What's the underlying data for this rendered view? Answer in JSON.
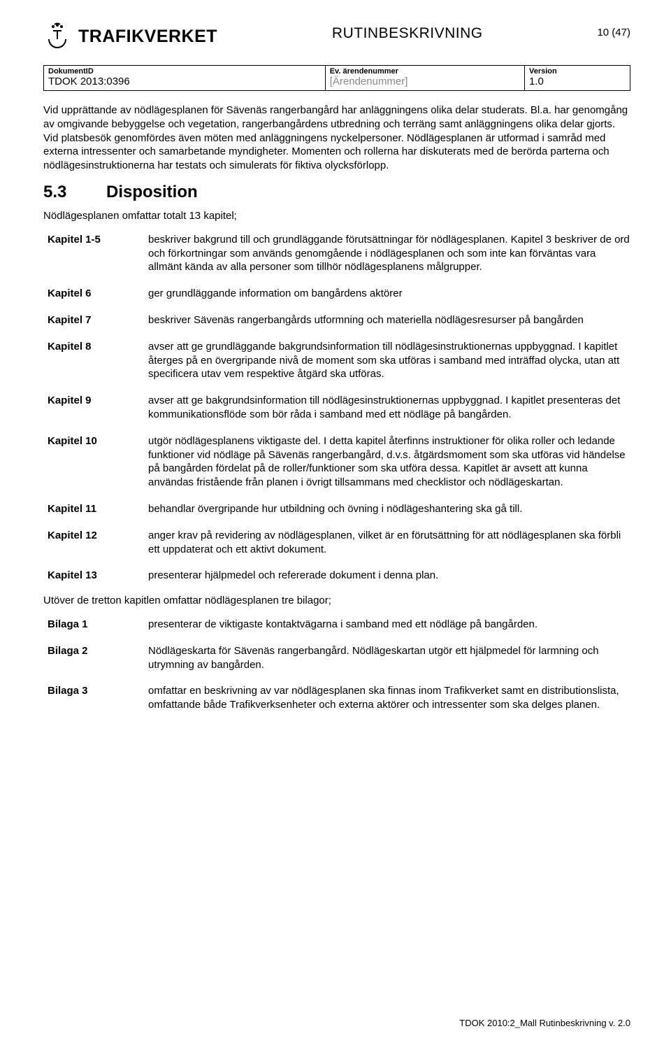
{
  "header": {
    "org_name": "TRAFIKVERKET",
    "doc_type": "RUTINBESKRIVNING",
    "page_indicator": "10 (47)"
  },
  "meta": {
    "labels": {
      "dokument_id": "DokumentID",
      "arende": "Ev. ärendenummer",
      "version": "Version"
    },
    "values": {
      "dokument_id": "TDOK 2013:0396",
      "arende": "[Ärendenummer]",
      "version": "1.0"
    }
  },
  "intro_paragraph": "Vid upprättande av nödlägesplanen för Sävenäs rangerbangård har anläggningens olika delar studerats. Bl.a. har genomgång av omgivande bebyggelse och vegetation, rangerbangårdens utbredning och terräng samt anläggningens olika delar gjorts. Vid platsbesök genomfördes även möten med anläggningens nyckelpersoner. Nödlägesplanen är utformad i samråd med externa intressenter och samarbetande myndigheter. Momenten och rollerna har diskuterats med de berörda parterna och nödlägesinstruktionerna har testats och simulerats för fiktiva olycksförlopp.",
  "section": {
    "number": "5.3",
    "title": "Disposition",
    "lead": "Nödlägesplanen omfattar totalt 13 kapitel;"
  },
  "chapters": [
    {
      "label": "Kapitel 1-5",
      "text": "beskriver bakgrund till och grundläggande förutsättningar för nödlägesplanen. Kapitel 3 beskriver de ord och förkortningar som används genomgående i nödlägesplanen och som inte kan förväntas vara allmänt kända av alla personer som tillhör nödlägesplanens målgrupper."
    },
    {
      "label": "Kapitel 6",
      "text": "ger grundläggande information om bangårdens aktörer"
    },
    {
      "label": "Kapitel 7",
      "text": "beskriver Sävenäs rangerbangårds utformning och materiella nödlägesresurser på bangården"
    },
    {
      "label": "Kapitel 8",
      "text": "avser att ge grundläggande bakgrundsinformation till nödlägesinstruktionernas uppbyggnad. I kapitlet återges på en övergripande nivå de moment som ska utföras i samband med inträffad olycka, utan att specificera utav vem respektive åtgärd ska utföras."
    },
    {
      "label": "Kapitel 9",
      "text": "avser att ge bakgrundsinformation till nödlägesinstruktionernas uppbyggnad. I kapitlet presenteras det kommunikationsflöde som bör råda i samband med ett nödläge på bangården."
    },
    {
      "label": "Kapitel 10",
      "text": "utgör nödlägesplanens viktigaste del. I detta kapitel återfinns instruktioner för olika roller och ledande funktioner vid nödläge på Sävenäs rangerbangård, d.v.s. åtgärdsmoment som ska utföras vid händelse på bangården fördelat på de roller/funktioner som ska utföra dessa. Kapitlet är avsett att kunna användas fristående från planen i övrigt tillsammans med checklistor och nödlägeskartan."
    },
    {
      "label": "Kapitel 11",
      "text": "behandlar övergripande hur utbildning och övning i nödlägeshantering ska gå till."
    },
    {
      "label": "Kapitel 12",
      "text": "anger krav på revidering av nödlägesplanen, vilket är en förutsättning för att nödlägesplanen ska förbli ett uppdaterat och ett aktivt dokument."
    },
    {
      "label": "Kapitel 13",
      "text": "presenterar hjälpmedel och refererade dokument i denna plan."
    }
  ],
  "appendix_lead": "Utöver de tretton kapitlen omfattar nödlägesplanen tre bilagor;",
  "appendices": [
    {
      "label": "Bilaga 1",
      "text": "presenterar de viktigaste kontaktvägarna i samband med ett nödläge på bangården."
    },
    {
      "label": "Bilaga 2",
      "text": "Nödlägeskarta för Sävenäs rangerbangård. Nödlägeskartan utgör ett hjälpmedel för larmning och utrymning av bangården."
    },
    {
      "label": "Bilaga 3",
      "text": "omfattar en beskrivning av var nödlägesplanen ska finnas inom Trafikverket samt en distributionslista, omfattande både Trafikverksenheter och externa aktörer och intressenter som ska delges planen."
    }
  ],
  "footer": "TDOK 2010:2_Mall Rutinbeskrivning v. 2.0"
}
